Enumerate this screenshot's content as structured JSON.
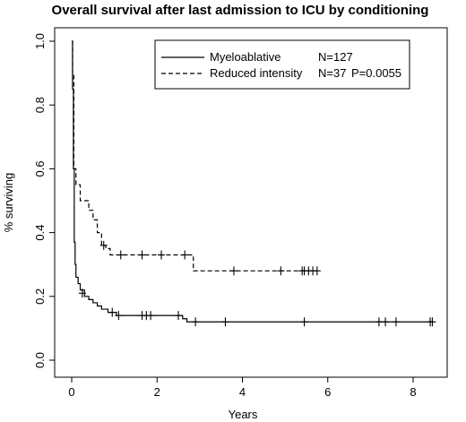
{
  "chart_data": {
    "type": "line",
    "subtype": "kaplan-meier",
    "title": "Overall survival after last admission to ICU by conditioning",
    "xlabel": "Years",
    "ylabel": "% surviving",
    "xlim": [
      0,
      8.6
    ],
    "ylim": [
      0,
      1.0
    ],
    "xticks": [
      0,
      2,
      4,
      6,
      8
    ],
    "yticks": [
      0.0,
      0.2,
      0.4,
      0.6,
      0.8,
      1.0
    ],
    "xtick_labels": [
      "0",
      "2",
      "4",
      "6",
      "8"
    ],
    "ytick_labels": [
      "0.0",
      "0.2",
      "0.4",
      "0.6",
      "0.8",
      "1.0"
    ],
    "grid": false,
    "legend_position": "top-right",
    "series": [
      {
        "name": "Myeloablative",
        "n_label": "N=127",
        "p_label": "",
        "line_style": "solid",
        "steps": [
          [
            0,
            1.0
          ],
          [
            0.02,
            0.85
          ],
          [
            0.04,
            0.6
          ],
          [
            0.06,
            0.37
          ],
          [
            0.08,
            0.3
          ],
          [
            0.1,
            0.26
          ],
          [
            0.15,
            0.24
          ],
          [
            0.2,
            0.22
          ],
          [
            0.3,
            0.2
          ],
          [
            0.4,
            0.19
          ],
          [
            0.5,
            0.18
          ],
          [
            0.6,
            0.17
          ],
          [
            0.7,
            0.16
          ],
          [
            0.85,
            0.15
          ],
          [
            1.05,
            0.14
          ],
          [
            2.6,
            0.13
          ],
          [
            2.7,
            0.12
          ],
          [
            8.45,
            0.12
          ]
        ],
        "censored": [
          [
            0.25,
            0.21
          ],
          [
            0.95,
            0.15
          ],
          [
            1.1,
            0.14
          ],
          [
            1.65,
            0.14
          ],
          [
            1.75,
            0.14
          ],
          [
            1.85,
            0.14
          ],
          [
            2.5,
            0.14
          ],
          [
            2.9,
            0.12
          ],
          [
            3.6,
            0.12
          ],
          [
            5.45,
            0.12
          ],
          [
            7.2,
            0.12
          ],
          [
            7.35,
            0.12
          ],
          [
            7.6,
            0.12
          ],
          [
            8.4,
            0.12
          ],
          [
            8.45,
            0.12
          ]
        ]
      },
      {
        "name": "Reduced intensity",
        "n_label": "N=37",
        "p_label": "P=0.0055",
        "line_style": "dashed",
        "steps": [
          [
            0,
            1.0
          ],
          [
            0.02,
            0.9
          ],
          [
            0.05,
            0.6
          ],
          [
            0.1,
            0.55
          ],
          [
            0.2,
            0.5
          ],
          [
            0.4,
            0.47
          ],
          [
            0.5,
            0.44
          ],
          [
            0.6,
            0.4
          ],
          [
            0.7,
            0.36
          ],
          [
            0.8,
            0.35
          ],
          [
            0.9,
            0.33
          ],
          [
            2.85,
            0.28
          ],
          [
            5.75,
            0.28
          ]
        ],
        "censored": [
          [
            0.75,
            0.36
          ],
          [
            1.15,
            0.33
          ],
          [
            1.65,
            0.33
          ],
          [
            2.1,
            0.33
          ],
          [
            2.65,
            0.33
          ],
          [
            3.8,
            0.28
          ],
          [
            4.9,
            0.28
          ],
          [
            5.4,
            0.28
          ],
          [
            5.45,
            0.28
          ],
          [
            5.55,
            0.28
          ],
          [
            5.65,
            0.28
          ],
          [
            5.75,
            0.28
          ]
        ]
      }
    ]
  }
}
